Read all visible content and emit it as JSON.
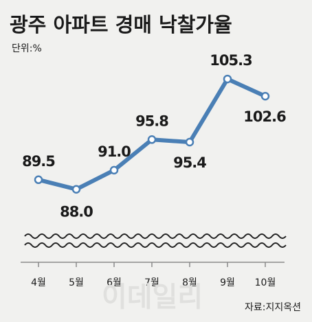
{
  "colors": {
    "background": "#f1f1ef",
    "line": "#4a7fb5",
    "marker_fill": "#ffffff",
    "text": "#1a1a1a",
    "axis": "#8a8a8a"
  },
  "header": {
    "title": "광주 아파트 경매 낙찰가율",
    "unit": "단위:%"
  },
  "footer": {
    "source": "자료:지지옥션",
    "watermark": "이데일리"
  },
  "chart_data": {
    "type": "line",
    "title": "광주 아파트 경매 낙찰가율",
    "xlabel": "",
    "ylabel": "",
    "categories": [
      "4월",
      "5월",
      "6월",
      "7월",
      "8월",
      "9월",
      "10월"
    ],
    "values": [
      89.5,
      88.0,
      91.0,
      95.8,
      95.4,
      105.3,
      102.6
    ],
    "value_labels": [
      "89.5",
      "88.0",
      "91.0",
      "95.8",
      "95.4",
      "105.3",
      "102.6"
    ],
    "ylim": [
      80,
      108
    ],
    "axis_break": true,
    "grid": false,
    "legend": "none"
  }
}
